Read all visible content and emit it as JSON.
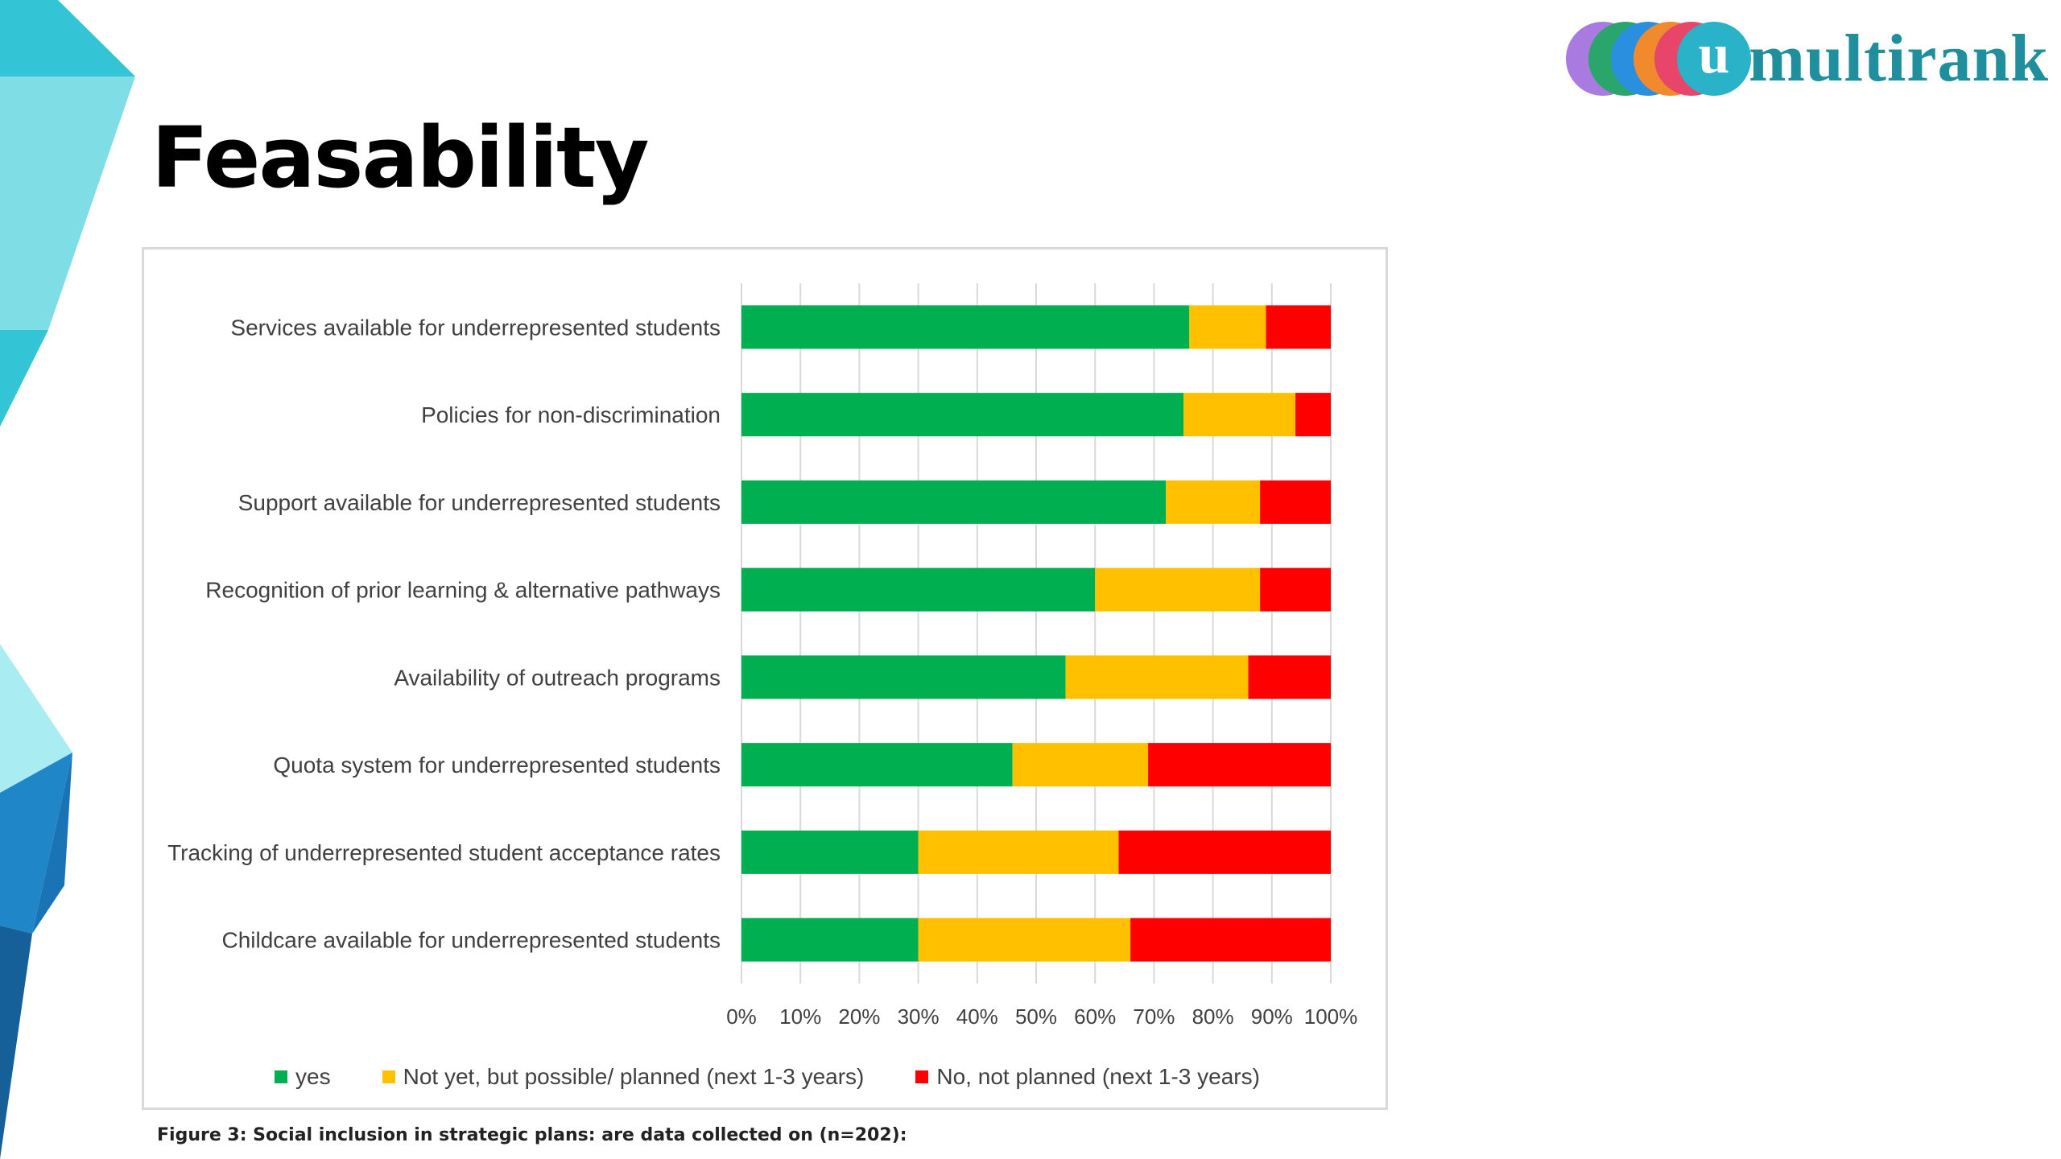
{
  "slide": {
    "title": "Feasability",
    "caption": "Figure 3: Social inclusion in strategic plans: are data collected on (n=202):"
  },
  "logo": {
    "letter": "u",
    "wordmark": "multirank",
    "circle_colors": [
      "#a97be0",
      "#2aa56b",
      "#2b8fe0",
      "#f08a2c",
      "#e8456b"
    ],
    "text_color": "#1f8f9e"
  },
  "decoration_colors": [
    "#33c4d6",
    "#7fdde6",
    "#a9ecf1",
    "#1f86c8",
    "#16609a"
  ],
  "chart_data": {
    "type": "bar",
    "orientation": "horizontal",
    "stacked": "percent",
    "categories": [
      "Services available for underrepresented students",
      "Policies for non-discrimination",
      "Support available for underrepresented students",
      "Recognition of prior learning & alternative pathways",
      "Availability of outreach programs",
      "Quota system for underrepresented students",
      "Tracking of underrepresented student acceptance rates",
      "Childcare available for underrepresented students"
    ],
    "series": [
      {
        "name": "yes",
        "color": "#00b050",
        "values": [
          76,
          75,
          72,
          60,
          55,
          46,
          30,
          30
        ]
      },
      {
        "name": "Not yet, but possible/ planned (next 1-3 years)",
        "color": "#ffc000",
        "values": [
          13,
          19,
          16,
          28,
          31,
          23,
          34,
          36
        ]
      },
      {
        "name": "No, not planned (next 1-3 years)",
        "color": "#ff0000",
        "values": [
          11,
          6,
          12,
          12,
          14,
          31,
          36,
          34
        ]
      }
    ],
    "xlim": [
      0,
      100
    ],
    "xticks": [
      "0%",
      "10%",
      "20%",
      "30%",
      "40%",
      "50%",
      "60%",
      "70%",
      "80%",
      "90%",
      "100%"
    ],
    "grid": true,
    "legend_position": "bottom"
  }
}
